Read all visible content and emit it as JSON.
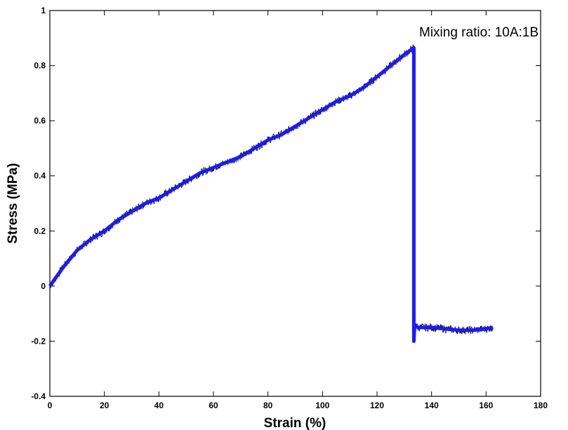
{
  "chart_data": {
    "type": "line",
    "title": "",
    "xlabel": "Strain (%)",
    "ylabel": "Stress (MPa)",
    "xlim": [
      0,
      180
    ],
    "ylim": [
      -0.4,
      1
    ],
    "xticks": [
      0,
      20,
      40,
      60,
      80,
      100,
      120,
      140,
      160,
      180
    ],
    "yticks": [
      -0.4,
      -0.2,
      0,
      0.2,
      0.4,
      0.6,
      0.8,
      1
    ],
    "ytick_labels": [
      "-0.4",
      "-0.2",
      "0",
      "0.2",
      "0.4",
      "0.6",
      "0.8",
      "1"
    ],
    "grid": false,
    "annotation": "Mixing ratio: 10A:1B",
    "series": [
      {
        "color": "#1a1aff",
        "x": [
          0,
          5,
          10,
          15,
          20,
          25,
          30,
          35,
          40,
          45,
          50,
          55,
          60,
          65,
          70,
          75,
          80,
          85,
          90,
          95,
          100,
          105,
          110,
          115,
          120,
          125,
          130,
          133.5,
          133.5,
          133.8,
          135,
          140,
          145,
          150,
          155,
          160,
          162.5
        ],
        "y": [
          0.0,
          0.07,
          0.13,
          0.17,
          0.2,
          0.24,
          0.27,
          0.3,
          0.32,
          0.35,
          0.38,
          0.41,
          0.43,
          0.45,
          0.47,
          0.5,
          0.53,
          0.55,
          0.58,
          0.61,
          0.64,
          0.67,
          0.69,
          0.72,
          0.76,
          0.8,
          0.84,
          0.865,
          -0.2,
          -0.14,
          -0.15,
          -0.15,
          -0.155,
          -0.16,
          -0.16,
          -0.155,
          -0.15
        ]
      }
    ]
  }
}
